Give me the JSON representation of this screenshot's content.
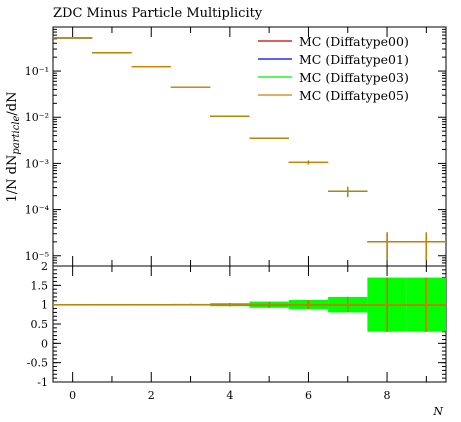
{
  "chart_data": {
    "type": "line",
    "title": "ZDC Minus Particle Multiplicity",
    "xlabel": "N",
    "ylabel": "1/N dN_particle/dN",
    "x_edges": [
      -0.5,
      0.5,
      1.5,
      2.5,
      3.5,
      4.5,
      5.5,
      6.5,
      7.5,
      8.5,
      9.5
    ],
    "xlim": [
      -0.5,
      9.5
    ],
    "ylim_main": [
      6e-06,
      0.9
    ],
    "yscale_main": "log",
    "ylim_ratio": [
      -1,
      2
    ],
    "x_ticks": [
      0,
      2,
      4,
      6,
      8
    ],
    "y_ticks_main": [
      "10⁻¹",
      "10⁻²",
      "10⁻³",
      "10⁻⁴",
      "10⁻⁵"
    ],
    "y_ticks_ratio": [
      "2",
      "1.5",
      "1",
      "0.5",
      "0",
      "-0.5",
      "-1"
    ],
    "legend_position": "top-right",
    "series": [
      {
        "name": "MC (Diffatype00)",
        "color": "#cc0000",
        "values": [
          0.52,
          0.25,
          0.125,
          0.045,
          0.0105,
          0.0035,
          0.00105,
          0.00025,
          2e-05,
          2e-05
        ],
        "errors": [
          0,
          0,
          0,
          0,
          0,
          0.0001,
          0.0001,
          6e-05,
          1.2e-05,
          1.2e-05
        ]
      },
      {
        "name": "MC (Diffatype01)",
        "color": "#0000ee",
        "values": [
          0.52,
          0.25,
          0.125,
          0.045,
          0.0105,
          0.0035,
          0.00105,
          0.00025,
          2e-05,
          2e-05
        ],
        "errors": [
          0,
          0,
          0,
          0,
          0,
          0.0001,
          0.0001,
          6e-05,
          1.2e-05,
          1.2e-05
        ]
      },
      {
        "name": "MC (Diffatype03)",
        "color": "#00ee00",
        "values": [
          0.52,
          0.25,
          0.125,
          0.045,
          0.0105,
          0.0035,
          0.00105,
          0.00025,
          2e-05,
          2e-05
        ],
        "errors": [
          0,
          0,
          0,
          0,
          0,
          0.0001,
          0.0001,
          6e-05,
          1.2e-05,
          1.2e-05
        ]
      },
      {
        "name": "MC (Diffatype05)",
        "color": "#cc8000",
        "values": [
          0.52,
          0.25,
          0.125,
          0.045,
          0.0105,
          0.0035,
          0.00105,
          0.00025,
          2e-05,
          2e-05
        ],
        "errors": [
          0,
          0,
          0,
          0,
          0,
          0.0001,
          0.0001,
          6e-05,
          1.2e-05,
          1.2e-05
        ]
      }
    ],
    "ratio": {
      "values": [
        1,
        1,
        1,
        1,
        1,
        1,
        1,
        1,
        1,
        1
      ],
      "band_low": [
        0.995,
        0.995,
        0.99,
        0.98,
        0.96,
        0.92,
        0.88,
        0.8,
        0.3,
        0.3
      ],
      "band_high": [
        1.005,
        1.005,
        1.01,
        1.02,
        1.04,
        1.08,
        1.12,
        1.2,
        1.7,
        1.7
      ],
      "band_color": "#00ff00"
    }
  }
}
